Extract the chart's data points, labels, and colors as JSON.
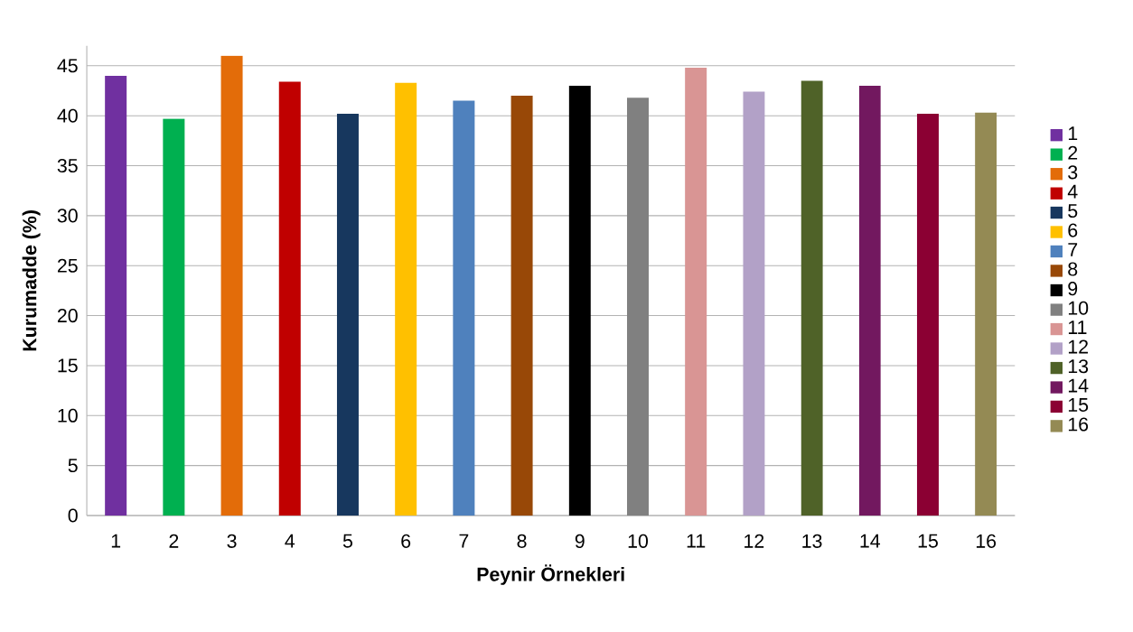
{
  "chart_data": {
    "type": "bar",
    "xlabel": "Peynir Örnekleri",
    "ylabel": "Kurumadde (%)",
    "categories": [
      "1",
      "2",
      "3",
      "4",
      "5",
      "6",
      "7",
      "8",
      "9",
      "10",
      "11",
      "12",
      "13",
      "14",
      "15",
      "16"
    ],
    "series": [
      {
        "name": "1",
        "color": "#7030a0",
        "values": [
          44,
          null,
          null,
          null,
          null,
          null,
          null,
          null,
          null,
          null,
          null,
          null,
          null,
          null,
          null,
          null
        ]
      },
      {
        "name": "2",
        "color": "#00b050",
        "values": [
          null,
          39.7,
          null,
          null,
          null,
          null,
          null,
          null,
          null,
          null,
          null,
          null,
          null,
          null,
          null,
          null
        ]
      },
      {
        "name": "3",
        "color": "#e36c09",
        "values": [
          null,
          null,
          46,
          null,
          null,
          null,
          null,
          null,
          null,
          null,
          null,
          null,
          null,
          null,
          null,
          null
        ]
      },
      {
        "name": "4",
        "color": "#c00000",
        "values": [
          null,
          null,
          null,
          43.4,
          null,
          null,
          null,
          null,
          null,
          null,
          null,
          null,
          null,
          null,
          null,
          null
        ]
      },
      {
        "name": "5",
        "color": "#17375e",
        "values": [
          null,
          null,
          null,
          null,
          40.2,
          null,
          null,
          null,
          null,
          null,
          null,
          null,
          null,
          null,
          null,
          null
        ]
      },
      {
        "name": "6",
        "color": "#ffc000",
        "values": [
          null,
          null,
          null,
          null,
          null,
          43.3,
          null,
          null,
          null,
          null,
          null,
          null,
          null,
          null,
          null,
          null
        ]
      },
      {
        "name": "7",
        "color": "#4f81bd",
        "values": [
          null,
          null,
          null,
          null,
          null,
          null,
          41.5,
          null,
          null,
          null,
          null,
          null,
          null,
          null,
          null,
          null
        ]
      },
      {
        "name": "8",
        "color": "#984807",
        "values": [
          null,
          null,
          null,
          null,
          null,
          null,
          null,
          42,
          null,
          null,
          null,
          null,
          null,
          null,
          null,
          null
        ]
      },
      {
        "name": "9",
        "color": "#000000",
        "values": [
          null,
          null,
          null,
          null,
          null,
          null,
          null,
          null,
          43,
          null,
          null,
          null,
          null,
          null,
          null,
          null
        ]
      },
      {
        "name": "10",
        "color": "#808080",
        "values": [
          null,
          null,
          null,
          null,
          null,
          null,
          null,
          null,
          null,
          41.8,
          null,
          null,
          null,
          null,
          null,
          null
        ]
      },
      {
        "name": "11",
        "color": "#d99594",
        "values": [
          null,
          null,
          null,
          null,
          null,
          null,
          null,
          null,
          null,
          null,
          44.8,
          null,
          null,
          null,
          null,
          null
        ]
      },
      {
        "name": "12",
        "color": "#b2a1c7",
        "values": [
          null,
          null,
          null,
          null,
          null,
          null,
          null,
          null,
          null,
          null,
          null,
          42.4,
          null,
          null,
          null,
          null
        ]
      },
      {
        "name": "13",
        "color": "#4f6228",
        "values": [
          null,
          null,
          null,
          null,
          null,
          null,
          null,
          null,
          null,
          null,
          null,
          null,
          43.5,
          null,
          null,
          null
        ]
      },
      {
        "name": "14",
        "color": "#72185f",
        "values": [
          null,
          null,
          null,
          null,
          null,
          null,
          null,
          null,
          null,
          null,
          null,
          null,
          null,
          43,
          null,
          null
        ]
      },
      {
        "name": "15",
        "color": "#8b0033",
        "values": [
          null,
          null,
          null,
          null,
          null,
          null,
          null,
          null,
          null,
          null,
          null,
          null,
          null,
          null,
          40.2,
          null
        ]
      },
      {
        "name": "16",
        "color": "#948a54",
        "values": [
          null,
          null,
          null,
          null,
          null,
          null,
          null,
          null,
          null,
          null,
          null,
          null,
          null,
          null,
          null,
          40.3
        ]
      }
    ],
    "ylim": [
      0,
      47
    ],
    "yticks": [
      0,
      5,
      10,
      15,
      20,
      25,
      30,
      35,
      40,
      45
    ],
    "grid": "y",
    "legend": "right"
  }
}
